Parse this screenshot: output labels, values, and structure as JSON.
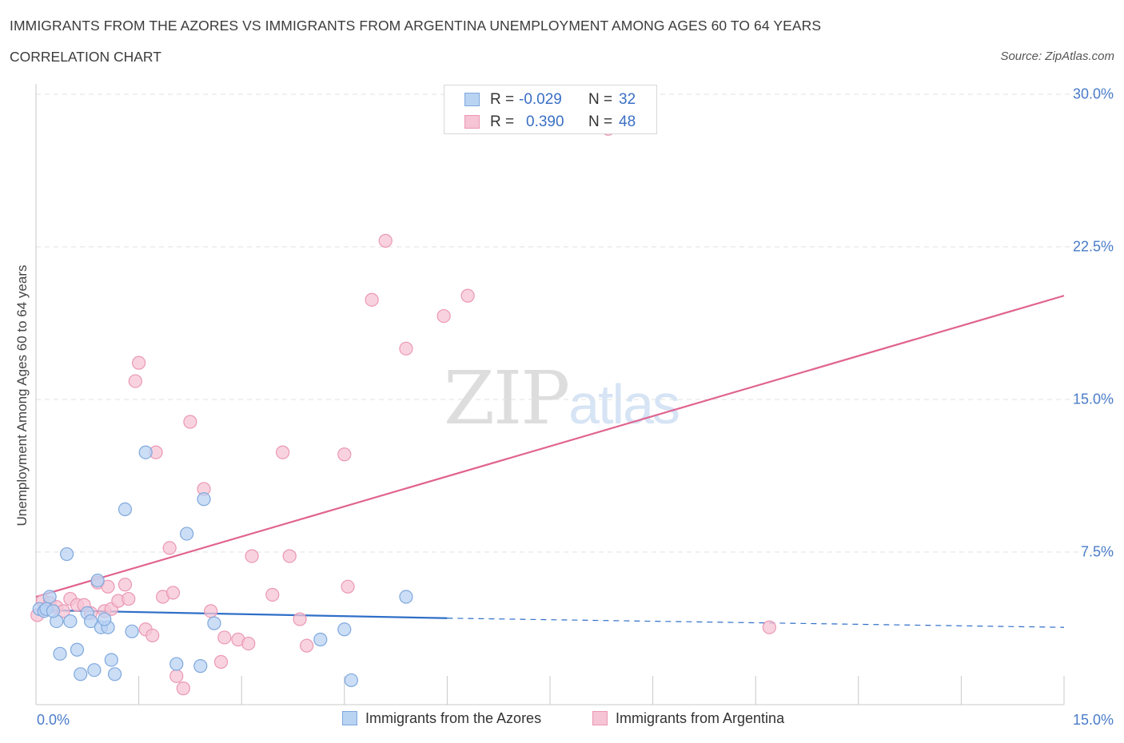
{
  "header": {
    "title": "IMMIGRANTS FROM THE AZORES VS IMMIGRANTS FROM ARGENTINA UNEMPLOYMENT AMONG AGES 60 TO 64 YEARS",
    "subtitle": "CORRELATION CHART",
    "source": "Source: ZipAtlas.com"
  },
  "watermark": {
    "zip": "ZIP",
    "atlas": "atlas"
  },
  "legend": {
    "rows": [
      {
        "r_label": "R =",
        "r_value": "-0.029",
        "n_label": "N =",
        "n_value": "32"
      },
      {
        "r_label": "R =",
        "r_value": "0.390",
        "n_label": "N =",
        "n_value": "48"
      }
    ]
  },
  "colors": {
    "azores_fill": "#b9d3f3",
    "azores_stroke": "#7fa8dd",
    "azores_line": "#2f6fc8",
    "argentina_fill": "#f6c4d4",
    "argentina_stroke": "#eb97b3",
    "argentina_line": "#e0648f",
    "tick_text": "#4a7cc9",
    "grid": "#e2e2e2"
  },
  "chart_data": {
    "type": "scatter",
    "title": "IMMIGRANTS FROM THE AZORES VS IMMIGRANTS FROM ARGENTINA UNEMPLOYMENT AMONG AGES 60 TO 64 YEARS",
    "xlabel": "",
    "ylabel": "Unemployment Among Ages 60 to 64 years",
    "xlim": [
      0,
      15
    ],
    "ylim": [
      0,
      30
    ],
    "x_tick_labels": [
      "0.0%",
      "15.0%"
    ],
    "y_ticks": [
      {
        "value": 7.5,
        "label": "7.5%"
      },
      {
        "value": 15,
        "label": "15.0%"
      },
      {
        "value": 22.5,
        "label": "22.5%"
      },
      {
        "value": 30,
        "label": "30.0%"
      }
    ],
    "grid": true,
    "legend_position": "top-center",
    "series": [
      {
        "name": "Immigrants from the Azores",
        "R": -0.029,
        "N": 32,
        "points": [
          [
            0.05,
            4.7
          ],
          [
            0.12,
            4.6
          ],
          [
            0.2,
            5.3
          ],
          [
            0.3,
            4.1
          ],
          [
            0.35,
            2.5
          ],
          [
            0.45,
            7.4
          ],
          [
            0.5,
            4.1
          ],
          [
            0.6,
            2.7
          ],
          [
            0.65,
            1.5
          ],
          [
            0.75,
            4.5
          ],
          [
            0.8,
            4.1
          ],
          [
            0.85,
            1.7
          ],
          [
            0.9,
            6.1
          ],
          [
            0.95,
            3.8
          ],
          [
            1.05,
            3.8
          ],
          [
            1.1,
            2.2
          ],
          [
            1.15,
            1.5
          ],
          [
            1.3,
            9.6
          ],
          [
            1.4,
            3.6
          ],
          [
            1.6,
            12.4
          ],
          [
            2.05,
            2.0
          ],
          [
            2.2,
            8.4
          ],
          [
            2.45,
            10.1
          ],
          [
            2.4,
            1.9
          ],
          [
            2.6,
            4.0
          ],
          [
            4.15,
            3.2
          ],
          [
            4.5,
            3.7
          ],
          [
            4.6,
            1.2
          ],
          [
            5.4,
            5.3
          ],
          [
            0.15,
            4.7
          ],
          [
            0.25,
            4.6
          ],
          [
            1.0,
            4.2
          ]
        ],
        "trend": {
          "x0": 0,
          "y0": 4.65,
          "x1": 6.0,
          "y1": 4.25,
          "dash_x1": 15.0,
          "dash_y1": 3.8
        }
      },
      {
        "name": "Immigrants from Argentina",
        "R": 0.39,
        "N": 48,
        "points": [
          [
            0.02,
            4.4
          ],
          [
            0.1,
            5.1
          ],
          [
            0.2,
            5.0
          ],
          [
            0.3,
            4.8
          ],
          [
            0.4,
            4.6
          ],
          [
            0.5,
            5.2
          ],
          [
            0.6,
            4.9
          ],
          [
            0.7,
            4.9
          ],
          [
            0.8,
            4.5
          ],
          [
            0.9,
            6.0
          ],
          [
            1.0,
            4.6
          ],
          [
            1.05,
            5.8
          ],
          [
            1.1,
            4.7
          ],
          [
            1.2,
            5.1
          ],
          [
            1.3,
            5.9
          ],
          [
            1.35,
            5.2
          ],
          [
            1.45,
            15.9
          ],
          [
            1.5,
            16.8
          ],
          [
            1.6,
            3.7
          ],
          [
            1.7,
            3.4
          ],
          [
            1.75,
            12.4
          ],
          [
            1.85,
            5.3
          ],
          [
            1.95,
            7.7
          ],
          [
            2.0,
            5.5
          ],
          [
            2.05,
            1.4
          ],
          [
            2.15,
            0.8
          ],
          [
            2.25,
            13.9
          ],
          [
            2.45,
            10.6
          ],
          [
            2.55,
            4.6
          ],
          [
            2.7,
            2.1
          ],
          [
            2.75,
            3.3
          ],
          [
            2.95,
            3.2
          ],
          [
            3.1,
            3.0
          ],
          [
            3.15,
            7.3
          ],
          [
            3.45,
            5.4
          ],
          [
            3.6,
            12.4
          ],
          [
            3.7,
            7.3
          ],
          [
            3.85,
            4.2
          ],
          [
            3.95,
            2.9
          ],
          [
            4.5,
            12.3
          ],
          [
            4.55,
            5.8
          ],
          [
            4.9,
            19.9
          ],
          [
            5.1,
            22.8
          ],
          [
            5.4,
            17.5
          ],
          [
            5.95,
            19.1
          ],
          [
            6.3,
            20.1
          ],
          [
            8.35,
            28.3
          ],
          [
            10.7,
            3.8
          ]
        ],
        "trend": {
          "x0": 0,
          "y0": 5.3,
          "x1": 15.0,
          "y1": 20.1
        }
      }
    ]
  }
}
